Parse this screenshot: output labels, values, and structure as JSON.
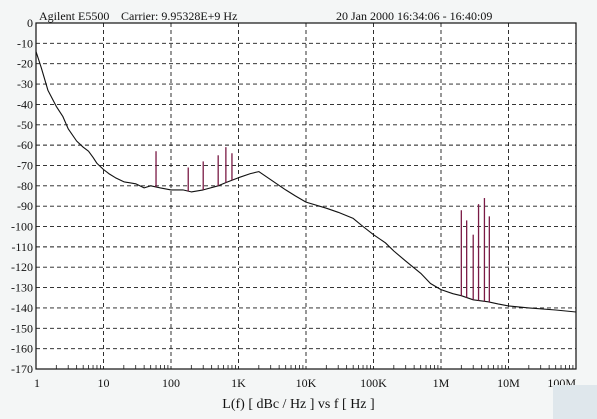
{
  "header": {
    "instrument": "Agilent E5500",
    "carrier": "Carrier: 9.95328E+9 Hz",
    "timestamp": "20 Jan 2000  16:34:06 - 16:40:09"
  },
  "axis_title": "L(f)  [ dBc / Hz ]  vs  f  [ Hz ]",
  "watermark": "",
  "colors": {
    "trace": "#111111",
    "spurs": "#7a1a45",
    "grid": "#1a1a1a",
    "frame": "#111111",
    "background": "#f4f6f6"
  },
  "chart_data": {
    "type": "line",
    "title": "",
    "xscale": "log",
    "xlim": [
      1,
      100000000
    ],
    "ylim": [
      -170,
      0
    ],
    "x_ticks": [
      {
        "value": 1,
        "label": "1"
      },
      {
        "value": 10,
        "label": "10"
      },
      {
        "value": 100,
        "label": "100"
      },
      {
        "value": 1000,
        "label": "1K"
      },
      {
        "value": 10000,
        "label": "10K"
      },
      {
        "value": 100000,
        "label": "100K"
      },
      {
        "value": 1000000,
        "label": "1M"
      },
      {
        "value": 10000000,
        "label": "10M"
      },
      {
        "value": 100000000,
        "label": "100M"
      }
    ],
    "y_ticks": [
      "0",
      "-10",
      "-20",
      "-30",
      "-40",
      "-50",
      "-60",
      "-70",
      "-80",
      "-90",
      "-100",
      "-110",
      "-120",
      "-130",
      "-140",
      "-150",
      "-160",
      "-170"
    ],
    "grid": true,
    "series": [
      {
        "x": [
          1,
          1.2,
          1.5,
          2,
          2.5,
          3,
          4,
          5,
          6,
          7,
          8,
          10,
          12,
          15,
          20,
          30,
          40,
          50,
          70,
          100,
          150,
          200,
          300,
          500,
          700,
          1000,
          1500,
          2000,
          3000,
          5000,
          7000,
          10000,
          20000,
          30000,
          50000,
          70000,
          100000,
          150000,
          200000,
          300000,
          500000,
          700000,
          1000000,
          1500000,
          2000000,
          3000000,
          5000000,
          7000000,
          10000000,
          20000000,
          50000000,
          100000000
        ],
        "y": [
          -14,
          -22,
          -33,
          -41,
          -46,
          -52,
          -58,
          -61,
          -63,
          -66,
          -69,
          -72,
          -74,
          -76,
          -78,
          -79,
          -81,
          -80,
          -81,
          -82,
          -82,
          -83,
          -82,
          -80,
          -78,
          -76,
          -74,
          -73,
          -77,
          -82,
          -85,
          -88,
          -91,
          -93,
          -96,
          -100,
          -104,
          -108,
          -112,
          -117,
          -123,
          -128,
          -131,
          -133,
          -134,
          -136,
          -137,
          -138,
          -139,
          -140,
          -141,
          -142
        ]
      }
    ],
    "spurs": [
      {
        "x": 60,
        "y": -63
      },
      {
        "x": 180,
        "y": -71
      },
      {
        "x": 300,
        "y": -68
      },
      {
        "x": 500,
        "y": -65
      },
      {
        "x": 650,
        "y": -61
      },
      {
        "x": 800,
        "y": -64
      },
      {
        "x": 2000000,
        "y": -92
      },
      {
        "x": 2400000,
        "y": -97
      },
      {
        "x": 3000000,
        "y": -104
      },
      {
        "x": 3600000,
        "y": -89
      },
      {
        "x": 4400000,
        "y": -86
      },
      {
        "x": 5200000,
        "y": -95
      }
    ]
  }
}
